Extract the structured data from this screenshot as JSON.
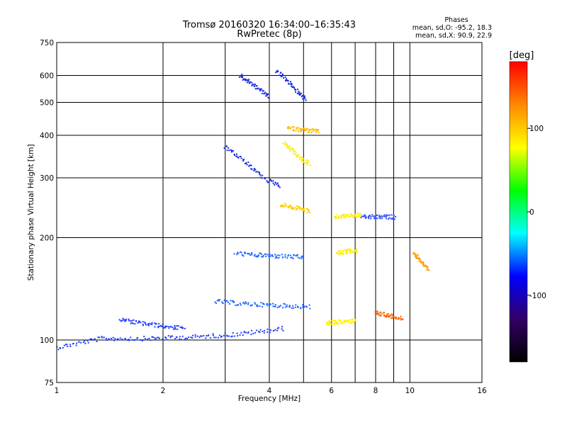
{
  "chart_data": {
    "type": "scatter",
    "title": "Tromsø 20160320 16:34:00–16:35:43",
    "subtitle": "RwPretec (8p)",
    "xlabel": "Frequency [MHz]",
    "ylabel": "Stationary phase Virtual Height [km]",
    "x_scale": "log",
    "y_scale": "log",
    "xlim": [
      1,
      16
    ],
    "ylim": [
      75,
      750
    ],
    "x_ticks": [
      1,
      2,
      4,
      6,
      8,
      10,
      16
    ],
    "x_tick_labels": [
      "1",
      "2",
      "4",
      "6",
      "8",
      "10",
      "16"
    ],
    "x_gridlines": [
      1,
      2,
      3,
      4,
      5,
      6,
      7,
      8,
      9,
      10,
      16
    ],
    "y_ticks": [
      75,
      100,
      200,
      300,
      400,
      500,
      600,
      750
    ],
    "y_tick_labels": [
      "75",
      "100",
      "200",
      "300",
      "400",
      "500",
      "600",
      "750"
    ],
    "grid": true,
    "phase_box": {
      "heading": "Phases",
      "line_o": "mean, sd,O:  -95.2, 18.3",
      "line_x": "mean, sd,X:  90.9, 22.9"
    },
    "colorbar": {
      "label": "[deg]",
      "ticks": [
        100,
        0,
        -100
      ],
      "tick_labels": [
        "100",
        "0",
        "-100"
      ],
      "range": [
        -180,
        180
      ],
      "colors": [
        "#ff0000",
        "#ff8800",
        "#ffff00",
        "#00ff00",
        "#00ffff",
        "#0000ff",
        "#330066",
        "#000000"
      ]
    },
    "series": [
      {
        "color": "#1f3cff",
        "x_range": [
          1.0,
          4.4
        ],
        "heights": [
          95,
          101,
          101,
          102,
          104,
          108
        ]
      },
      {
        "color": "#1f3cff",
        "x_range": [
          1.5,
          2.3
        ],
        "heights": [
          115,
          112,
          110,
          108
        ]
      },
      {
        "color": "#2266ff",
        "x_range": [
          2.8,
          5.2
        ],
        "heights": [
          130,
          128,
          127,
          126,
          125
        ]
      },
      {
        "color": "#2266ff",
        "x_range": [
          3.2,
          5.0
        ],
        "heights": [
          180,
          178,
          177,
          176,
          175
        ]
      },
      {
        "color": "#1a2cdd",
        "x_range": [
          3.0,
          4.3
        ],
        "heights": [
          370,
          345,
          320,
          295,
          285
        ]
      },
      {
        "color": "#1a2cdd",
        "x_range": [
          3.3,
          4.0
        ],
        "heights": [
          600,
          580,
          560,
          540,
          520
        ]
      },
      {
        "color": "#1a2cdd",
        "x_range": [
          4.2,
          5.1
        ],
        "heights": [
          620,
          590,
          560,
          530,
          510
        ]
      },
      {
        "color": "#ffee00",
        "x_range": [
          4.4,
          5.2
        ],
        "heights": [
          380,
          360,
          340,
          330
        ]
      },
      {
        "color": "#ffbb00",
        "x_range": [
          4.5,
          5.5
        ],
        "heights": [
          420,
          415,
          410
        ]
      },
      {
        "color": "#ffee00",
        "x_range": [
          6.1,
          7.3
        ],
        "heights": [
          230,
          232,
          233
        ]
      },
      {
        "color": "#3355ff",
        "x_range": [
          7.3,
          9.1
        ],
        "heights": [
          230,
          230,
          230
        ]
      },
      {
        "color": "#ffee00",
        "x_range": [
          6.2,
          7.1
        ],
        "heights": [
          180,
          182,
          183
        ]
      },
      {
        "color": "#ffee00",
        "x_range": [
          5.8,
          7.0
        ],
        "heights": [
          112,
          113,
          114
        ]
      },
      {
        "color": "#ffcc00",
        "x_range": [
          4.3,
          5.2
        ],
        "heights": [
          250,
          245,
          240
        ]
      },
      {
        "color": "#ff9900",
        "x_range": [
          10.3,
          11.3
        ],
        "heights": [
          180,
          170,
          160
        ]
      },
      {
        "color": "#ff6600",
        "x_range": [
          8.0,
          9.5
        ],
        "heights": [
          120,
          118,
          116
        ]
      }
    ]
  }
}
